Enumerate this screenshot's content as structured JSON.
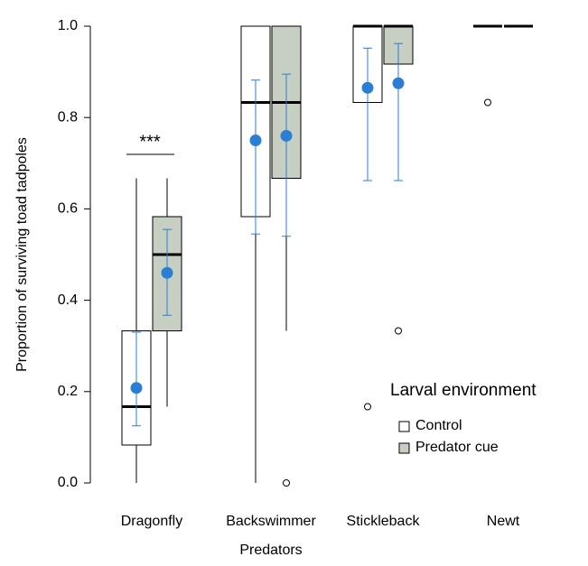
{
  "chart_data": {
    "type": "box",
    "xlabel": "Predators",
    "ylabel": "Proportion of surviving toad tadpoles",
    "categories": [
      "Dragonfly",
      "Backswimmer",
      "Stickleback",
      "Newt"
    ],
    "ylim": [
      0,
      1
    ],
    "yticks": [
      {
        "value": 0,
        "label": "0.0"
      },
      {
        "value": 0.2,
        "label": "0.2"
      },
      {
        "value": 0.4,
        "label": "0.4"
      },
      {
        "value": 0.6,
        "label": "0.6"
      },
      {
        "value": 0.8,
        "label": "0.8"
      },
      {
        "value": 1,
        "label": "1.0"
      }
    ],
    "legend_title": "Larval environment",
    "legend": "lower right",
    "annotation": "***",
    "mean_color": "#2a7fd4",
    "series": [
      {
        "name": "Control",
        "color": "#ffffff",
        "whisker_low": [
          0,
          0,
          0.833,
          1
        ],
        "q1": [
          0.083,
          0.583,
          0.833,
          1
        ],
        "median": [
          0.167,
          0.833,
          1,
          1
        ],
        "q3": [
          0.333,
          1,
          1,
          1
        ],
        "whisker_high": [
          0.667,
          1,
          1,
          1
        ],
        "mean": [
          0.208,
          0.75,
          0.865,
          null
        ],
        "ci_low": [
          0.125,
          0.545,
          0.662,
          null
        ],
        "ci_high": [
          0.33,
          0.882,
          0.952,
          null
        ],
        "outliers": [
          [],
          [],
          [
            0.167
          ],
          [
            0.833
          ]
        ]
      },
      {
        "name": "Predator cue",
        "color": "#c6cfc2",
        "whisker_low": [
          0.167,
          0.333,
          0.833,
          1
        ],
        "q1": [
          0.333,
          0.667,
          0.917,
          1
        ],
        "median": [
          0.5,
          0.833,
          1,
          1
        ],
        "q3": [
          0.583,
          1,
          1,
          1
        ],
        "whisker_high": [
          0.667,
          1,
          1,
          1
        ],
        "mean": [
          0.46,
          0.76,
          0.875,
          null
        ],
        "ci_low": [
          0.367,
          0.54,
          0.662,
          null
        ],
        "ci_high": [
          0.555,
          0.895,
          0.962,
          null
        ],
        "outliers": [
          [],
          [
            0
          ],
          [
            0.333
          ],
          []
        ]
      }
    ]
  }
}
